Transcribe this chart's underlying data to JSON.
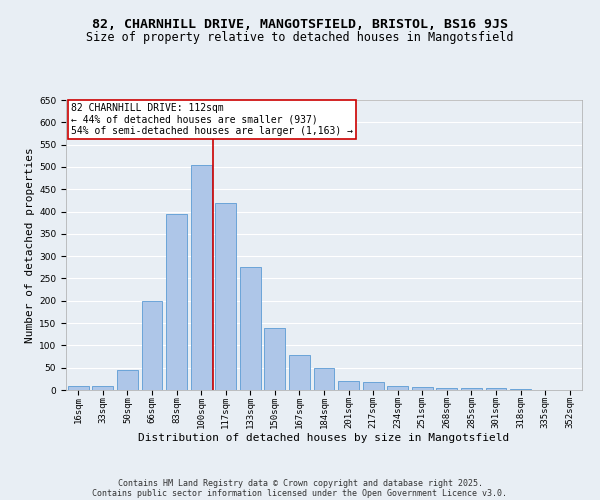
{
  "title1": "82, CHARNHILL DRIVE, MANGOTSFIELD, BRISTOL, BS16 9JS",
  "title2": "Size of property relative to detached houses in Mangotsfield",
  "xlabel": "Distribution of detached houses by size in Mangotsfield",
  "ylabel": "Number of detached properties",
  "categories": [
    "16sqm",
    "33sqm",
    "50sqm",
    "66sqm",
    "83sqm",
    "100sqm",
    "117sqm",
    "133sqm",
    "150sqm",
    "167sqm",
    "184sqm",
    "201sqm",
    "217sqm",
    "234sqm",
    "251sqm",
    "268sqm",
    "285sqm",
    "301sqm",
    "318sqm",
    "335sqm",
    "352sqm"
  ],
  "values": [
    8,
    10,
    45,
    200,
    395,
    505,
    420,
    275,
    138,
    78,
    50,
    20,
    18,
    9,
    6,
    4,
    4,
    4,
    2,
    1,
    1
  ],
  "bar_color": "#aec6e8",
  "bar_edge_color": "#5b9bd5",
  "bg_color": "#e8eef4",
  "grid_color": "#ffffff",
  "vline_color": "#cc0000",
  "annotation_text": "82 CHARNHILL DRIVE: 112sqm\n← 44% of detached houses are smaller (937)\n54% of semi-detached houses are larger (1,163) →",
  "annotation_box_color": "#ffffff",
  "annotation_box_edge": "#cc0000",
  "footnote1": "Contains HM Land Registry data © Crown copyright and database right 2025.",
  "footnote2": "Contains public sector information licensed under the Open Government Licence v3.0.",
  "ylim": [
    0,
    650
  ],
  "title1_fontsize": 9.5,
  "title2_fontsize": 8.5,
  "xlabel_fontsize": 8,
  "ylabel_fontsize": 8,
  "tick_fontsize": 6.5,
  "annotation_fontsize": 7,
  "footnote_fontsize": 6
}
